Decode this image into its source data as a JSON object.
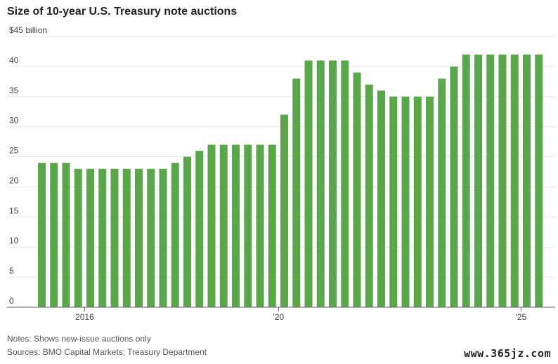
{
  "chart_data": {
    "type": "bar",
    "title": "Size of 10-year U.S. Treasury note auctions",
    "ylabel": "$45 billion",
    "ylim": [
      0,
      45
    ],
    "yticks": [
      {
        "value": 0,
        "label": "0"
      },
      {
        "value": 5,
        "label": "5"
      },
      {
        "value": 10,
        "label": "10"
      },
      {
        "value": 15,
        "label": "15"
      },
      {
        "value": 20,
        "label": "20"
      },
      {
        "value": 25,
        "label": "25"
      },
      {
        "value": 30,
        "label": "30"
      },
      {
        "value": 35,
        "label": "35"
      },
      {
        "value": 40,
        "label": "40"
      },
      {
        "value": 45,
        "label": "$45 billion"
      }
    ],
    "xticks": [
      {
        "at_bar": 3.5,
        "label": "2016"
      },
      {
        "at_bar": 19.5,
        "label": "'20"
      },
      {
        "at_bar": 39.5,
        "label": "'25"
      }
    ],
    "grid": true,
    "color": "#5aa64a",
    "values": [
      24,
      24,
      24,
      23,
      23,
      23,
      23,
      23,
      23,
      23,
      23,
      24,
      25,
      26,
      27,
      27,
      27,
      27,
      27,
      27,
      32,
      38,
      41,
      41,
      41,
      41,
      39,
      37,
      36,
      35,
      35,
      35,
      35,
      38,
      40,
      42,
      42,
      42,
      42,
      42,
      42,
      42
    ]
  },
  "notes": "Notes: Shows new-issue auctions only",
  "sources": "Sources: BMO Capital Markets; Treasury Department",
  "watermark": "www.365jz.com"
}
